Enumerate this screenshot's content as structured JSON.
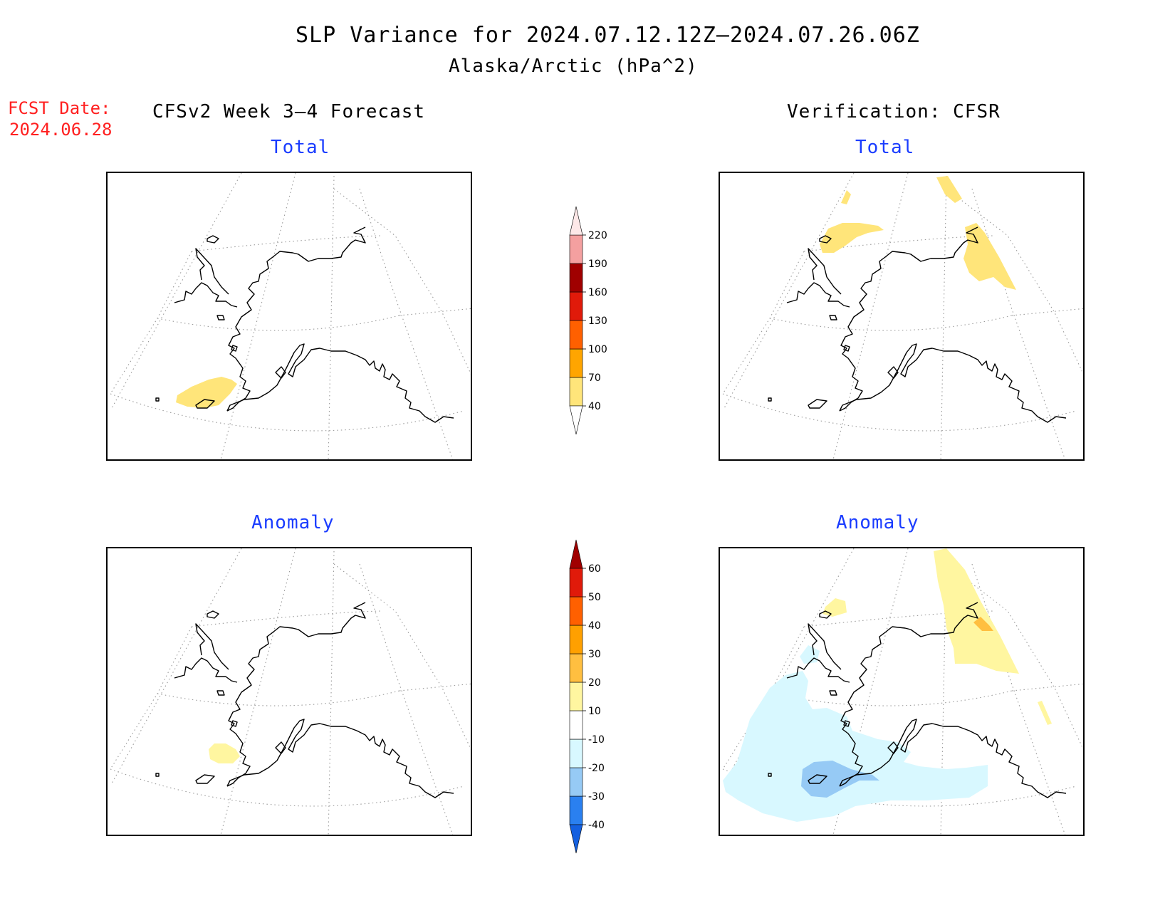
{
  "header": {
    "title": "SLP Variance for 2024.07.12.12Z–2024.07.26.06Z",
    "subtitle": "Alaska/Arctic (hPa^2)"
  },
  "fcst": {
    "label": "FCST Date:",
    "date": "2024.06.28"
  },
  "columns": {
    "left": "CFSv2 Week 3–4 Forecast",
    "right": "Verification: CFSR"
  },
  "panels": {
    "forecast_total": {
      "label": "Total"
    },
    "verification_total": {
      "label": "Total"
    },
    "forecast_anomaly": {
      "label": "Anomaly"
    },
    "verification_anomaly": {
      "label": "Anomaly"
    }
  },
  "colorbar_total": {
    "levels": [
      40,
      70,
      100,
      130,
      160,
      190,
      220
    ],
    "colors": [
      "#ffe57a",
      "#ffa500",
      "#ff6000",
      "#e01a0a",
      "#a00000",
      "#f4a0a0",
      "#fde8e8"
    ],
    "labels": [
      "40",
      "70",
      "100",
      "130",
      "160",
      "190",
      "220"
    ]
  },
  "colorbar_anomaly": {
    "levels": [
      -40,
      -30,
      -20,
      -10,
      10,
      20,
      30,
      40,
      50,
      60
    ],
    "colors": [
      "#1460e0",
      "#2a80f0",
      "#96caf5",
      "#d8f8ff",
      "#ffffff",
      "#fff6a0",
      "#ffbf40",
      "#ffa000",
      "#ff6000",
      "#e01a0a",
      "#a00000"
    ],
    "labels": [
      "-40",
      "-30",
      "-20",
      "-10",
      "10",
      "20",
      "30",
      "40",
      "50",
      "60"
    ]
  },
  "map_colors": {
    "total_yellow": "#ffe57a",
    "anom_yellow": "#fff6a0",
    "anom_orange": "#ffbf40",
    "anom_lightblue": "#d8f8ff",
    "anom_blue": "#96caf5"
  }
}
